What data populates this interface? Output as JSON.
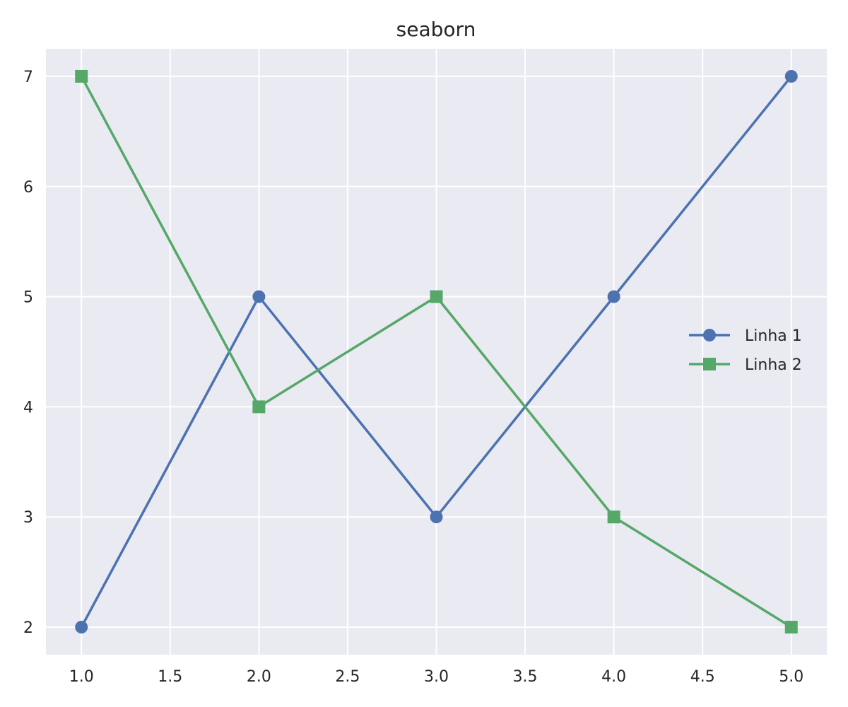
{
  "chart_data": {
    "type": "line",
    "title": "seaborn",
    "xlabel": "",
    "ylabel": "",
    "xlim": [
      0.8,
      5.2
    ],
    "ylim": [
      1.75,
      7.25
    ],
    "x_ticks": [
      1.0,
      1.5,
      2.0,
      2.5,
      3.0,
      3.5,
      4.0,
      4.5,
      5.0
    ],
    "x_tick_labels": [
      "1.0",
      "1.5",
      "2.0",
      "2.5",
      "3.0",
      "3.5",
      "4.0",
      "4.5",
      "5.0"
    ],
    "y_ticks": [
      2,
      3,
      4,
      5,
      6,
      7
    ],
    "y_tick_labels": [
      "2",
      "3",
      "4",
      "5",
      "6",
      "7"
    ],
    "grid": true,
    "background": "#eaeaf2",
    "grid_color": "#ffffff",
    "legend_position": "center-right",
    "x": [
      1,
      2,
      3,
      4,
      5
    ],
    "series": [
      {
        "name": "Linha 1",
        "values": [
          2,
          5,
          3,
          5,
          7
        ],
        "color": "#4c72b0",
        "marker": "circle"
      },
      {
        "name": "Linha 2",
        "values": [
          7,
          4,
          5,
          3,
          2
        ],
        "color": "#55a868",
        "marker": "square"
      }
    ]
  }
}
